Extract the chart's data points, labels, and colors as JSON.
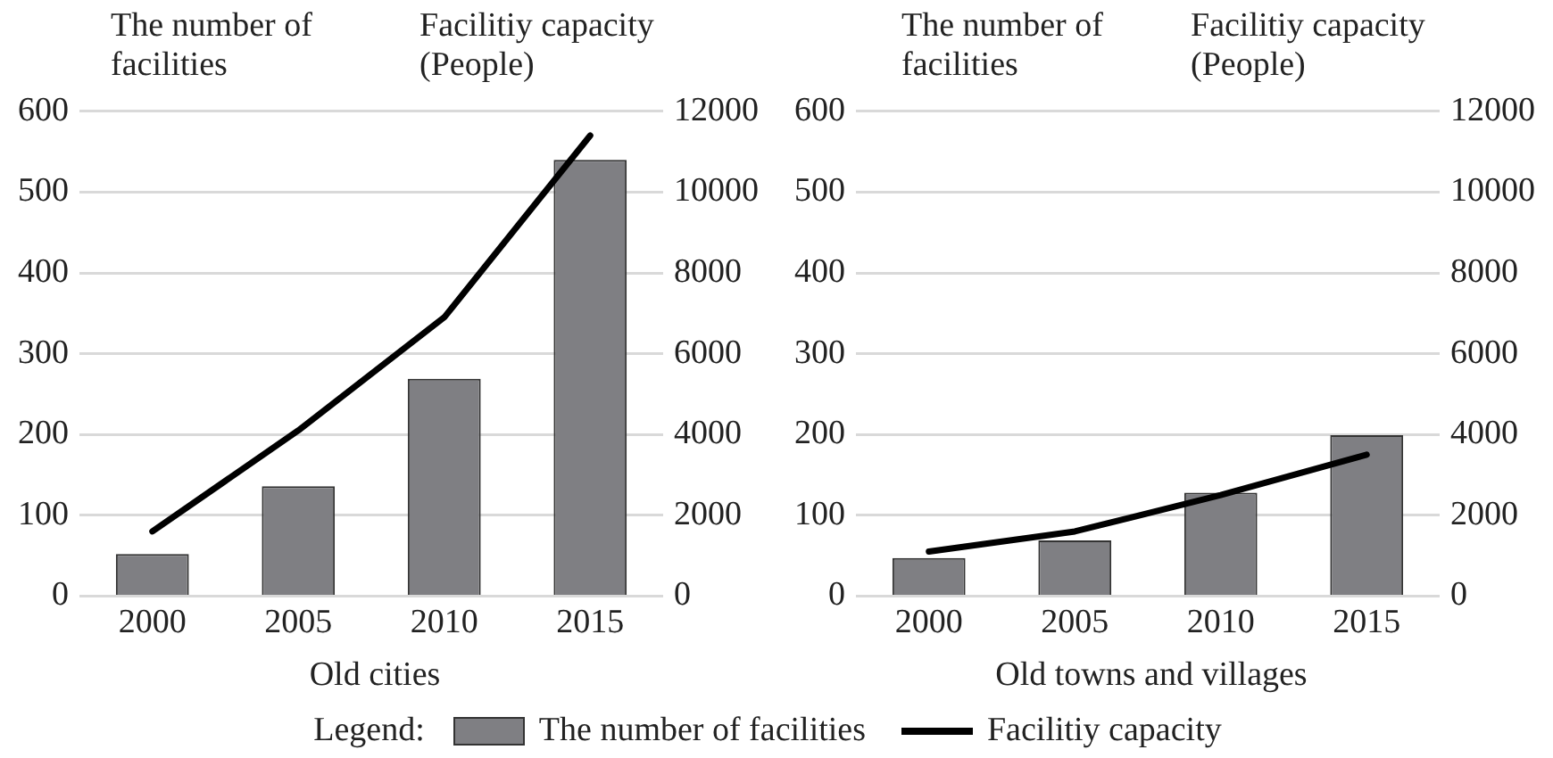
{
  "chart_data": [
    {
      "type": "bar",
      "ylabel": "The number of facilities",
      "y2label": "Facilitiy capacity (People)",
      "xlabel": "Old cities",
      "legend_title": "Legend:",
      "legend": "bottom",
      "grid": "y",
      "categories": [
        "2000",
        "2005",
        "2010",
        "2015"
      ],
      "ylim": [
        0,
        600
      ],
      "yticks": [
        0,
        100,
        200,
        300,
        400,
        500,
        600
      ],
      "y2lim": [
        0,
        12000
      ],
      "y2ticks": [
        0,
        2000,
        4000,
        6000,
        8000,
        10000,
        12000
      ],
      "series": [
        {
          "name": "The number of facilities",
          "color": "#7f7f83",
          "values": [
            52,
            136,
            269,
            540
          ]
        },
        {
          "name": "Facilitiy capacity",
          "type": "line",
          "axis": "y2",
          "color": "#000000",
          "marker": "none",
          "values": [
            1600,
            4100,
            6900,
            11400
          ]
        }
      ]
    },
    {
      "type": "bar",
      "ylabel": "The number of facilities",
      "y2label": "Facilitiy capacity (People)",
      "xlabel": "Old towns and villages",
      "grid": "y",
      "categories": [
        "2000",
        "2005",
        "2010",
        "2015"
      ],
      "ylim": [
        0,
        600
      ],
      "yticks": [
        0,
        100,
        200,
        300,
        400,
        500,
        600
      ],
      "y2lim": [
        0,
        12000
      ],
      "y2ticks": [
        0,
        2000,
        4000,
        6000,
        8000,
        10000,
        12000
      ],
      "series": [
        {
          "color": "#7f7f83",
          "values": [
            47,
            69,
            128,
            199
          ]
        },
        {
          "type": "line",
          "axis": "y2",
          "color": "#000000",
          "marker": "none",
          "values": [
            1100,
            1600,
            2500,
            3500
          ]
        }
      ]
    }
  ]
}
